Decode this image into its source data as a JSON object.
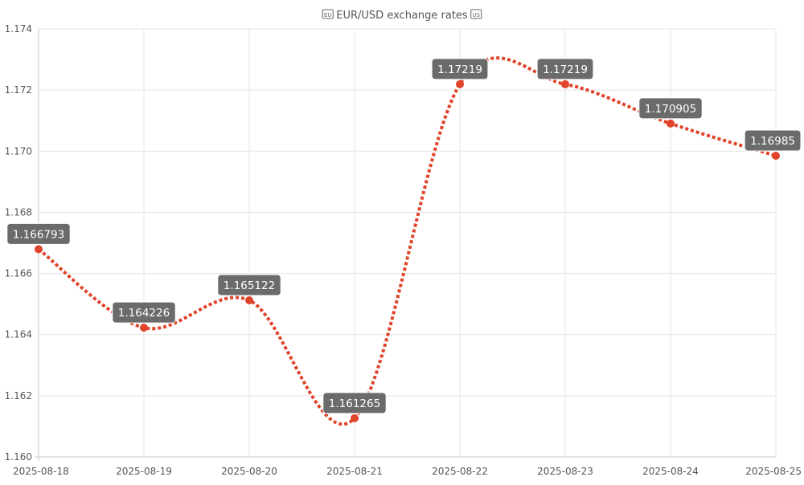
{
  "chart_data": {
    "type": "line",
    "title": "EUR/USD exchange rates",
    "title_icons": [
      "EU",
      "US"
    ],
    "categories": [
      "2025-08-18",
      "2025-08-19",
      "2025-08-20",
      "2025-08-21",
      "2025-08-22",
      "2025-08-23",
      "2025-08-24",
      "2025-08-25"
    ],
    "series": [
      {
        "values": [
          1.166793,
          1.164226,
          1.165122,
          1.161265,
          1.17219,
          1.17219,
          1.170905,
          1.16985
        ],
        "data_labels": [
          "1.166793",
          "1.164226",
          "1.165122",
          "1.161265",
          "1.17219",
          "1.17219",
          "1.170905",
          "1.16985"
        ],
        "color": "#e0442a",
        "line_style": "dotted",
        "smooth": true
      }
    ],
    "xlabel": "",
    "ylabel": "",
    "ylim": [
      1.16,
      1.174
    ],
    "yticks": [
      "1.160",
      "1.162",
      "1.164",
      "1.166",
      "1.168",
      "1.170",
      "1.172",
      "1.174"
    ],
    "grid": true,
    "legend": "none",
    "colors": {
      "series": "#e0442a",
      "label_background": "#6b6b6b",
      "label_text": "#ffffff",
      "grid": "#e4e4e4",
      "text": "#555555"
    }
  }
}
